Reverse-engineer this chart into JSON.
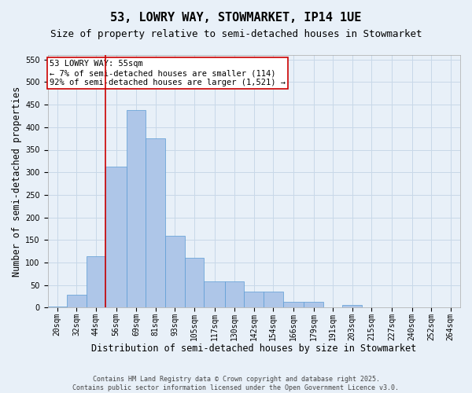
{
  "title": "53, LOWRY WAY, STOWMARKET, IP14 1UE",
  "subtitle": "Size of property relative to semi-detached houses in Stowmarket",
  "xlabel": "Distribution of semi-detached houses by size in Stowmarket",
  "ylabel": "Number of semi-detached properties",
  "bins": [
    "20sqm",
    "32sqm",
    "44sqm",
    "56sqm",
    "69sqm",
    "81sqm",
    "93sqm",
    "105sqm",
    "117sqm",
    "130sqm",
    "142sqm",
    "154sqm",
    "166sqm",
    "179sqm",
    "191sqm",
    "203sqm",
    "215sqm",
    "227sqm",
    "240sqm",
    "252sqm",
    "264sqm"
  ],
  "bar_heights": [
    3,
    28,
    113,
    313,
    438,
    375,
    160,
    110,
    58,
    58,
    36,
    36,
    13,
    13,
    0,
    6,
    0,
    0,
    0,
    0,
    0
  ],
  "bar_color": "#aec6e8",
  "bar_edge_color": "#5b9bd5",
  "grid_color": "#c8d8e8",
  "background_color": "#e8f0f8",
  "annotation_title": "53 LOWRY WAY: 55sqm",
  "annotation_line1": "← 7% of semi-detached houses are smaller (114)",
  "annotation_line2": "92% of semi-detached houses are larger (1,521) →",
  "annotation_box_color": "#ffffff",
  "annotation_border_color": "#cc0000",
  "vline_color": "#cc0000",
  "vline_x": 56,
  "ylim": [
    0,
    560
  ],
  "yticks": [
    0,
    50,
    100,
    150,
    200,
    250,
    300,
    350,
    400,
    450,
    500,
    550
  ],
  "footer_line1": "Contains HM Land Registry data © Crown copyright and database right 2025.",
  "footer_line2": "Contains public sector information licensed under the Open Government Licence v3.0.",
  "title_fontsize": 11,
  "subtitle_fontsize": 9,
  "axis_label_fontsize": 8.5,
  "tick_fontsize": 7,
  "annotation_fontsize": 7.5,
  "footer_fontsize": 6
}
